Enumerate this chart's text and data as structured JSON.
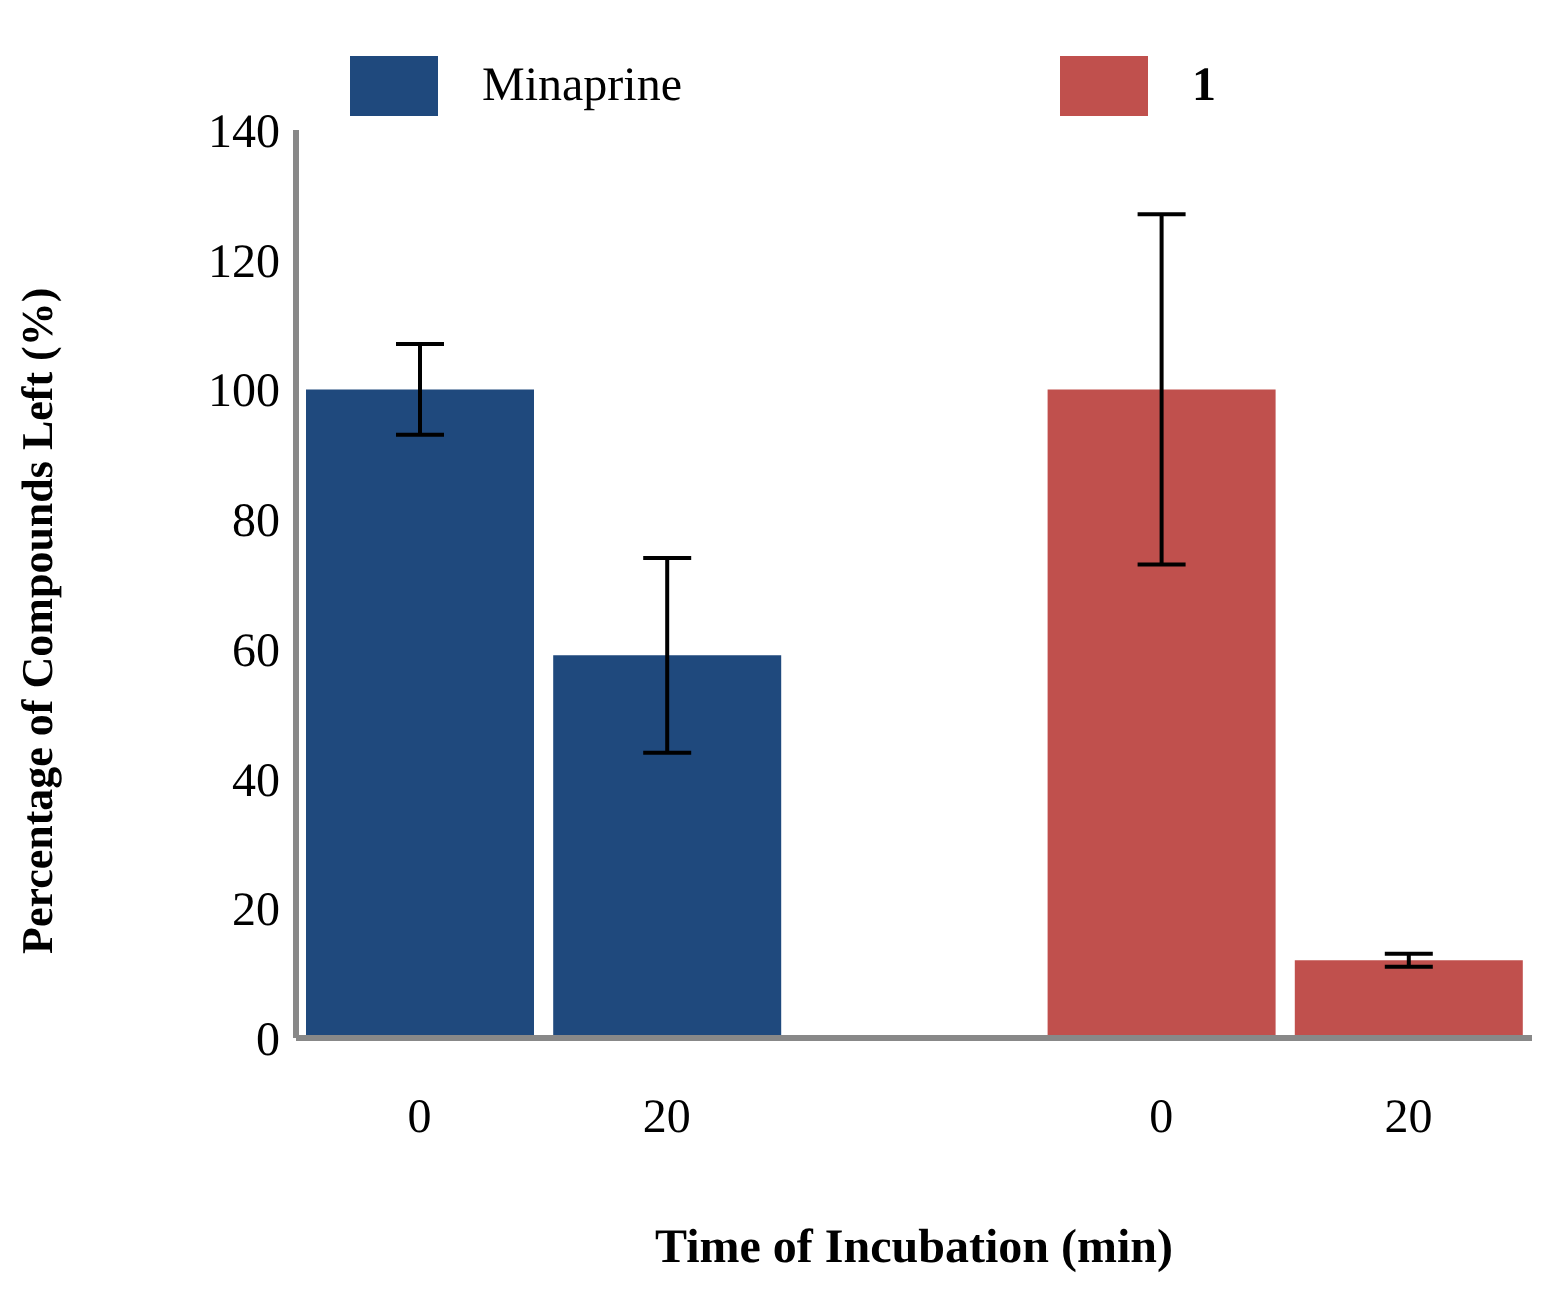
{
  "chart_data": {
    "type": "bar",
    "xlabel": "Time of Incubation (min)",
    "ylabel": "Percentage of Compounds Left (%)",
    "categories": [
      "0",
      "20",
      null,
      "0",
      "20"
    ],
    "series": [
      {
        "name": "Minaprine",
        "color": "#1f497d",
        "values": [
          100,
          59,
          null,
          null,
          null
        ],
        "errors": [
          7,
          15,
          null,
          null,
          null
        ]
      },
      {
        "name": "1",
        "color": "#c0504d",
        "values": [
          null,
          null,
          null,
          100,
          12
        ],
        "errors": [
          null,
          null,
          null,
          27,
          1
        ]
      }
    ],
    "ylim": [
      0,
      140
    ],
    "yticks": [
      0,
      20,
      40,
      60,
      80,
      100,
      120,
      140
    ],
    "grid": false,
    "legend": "top"
  }
}
